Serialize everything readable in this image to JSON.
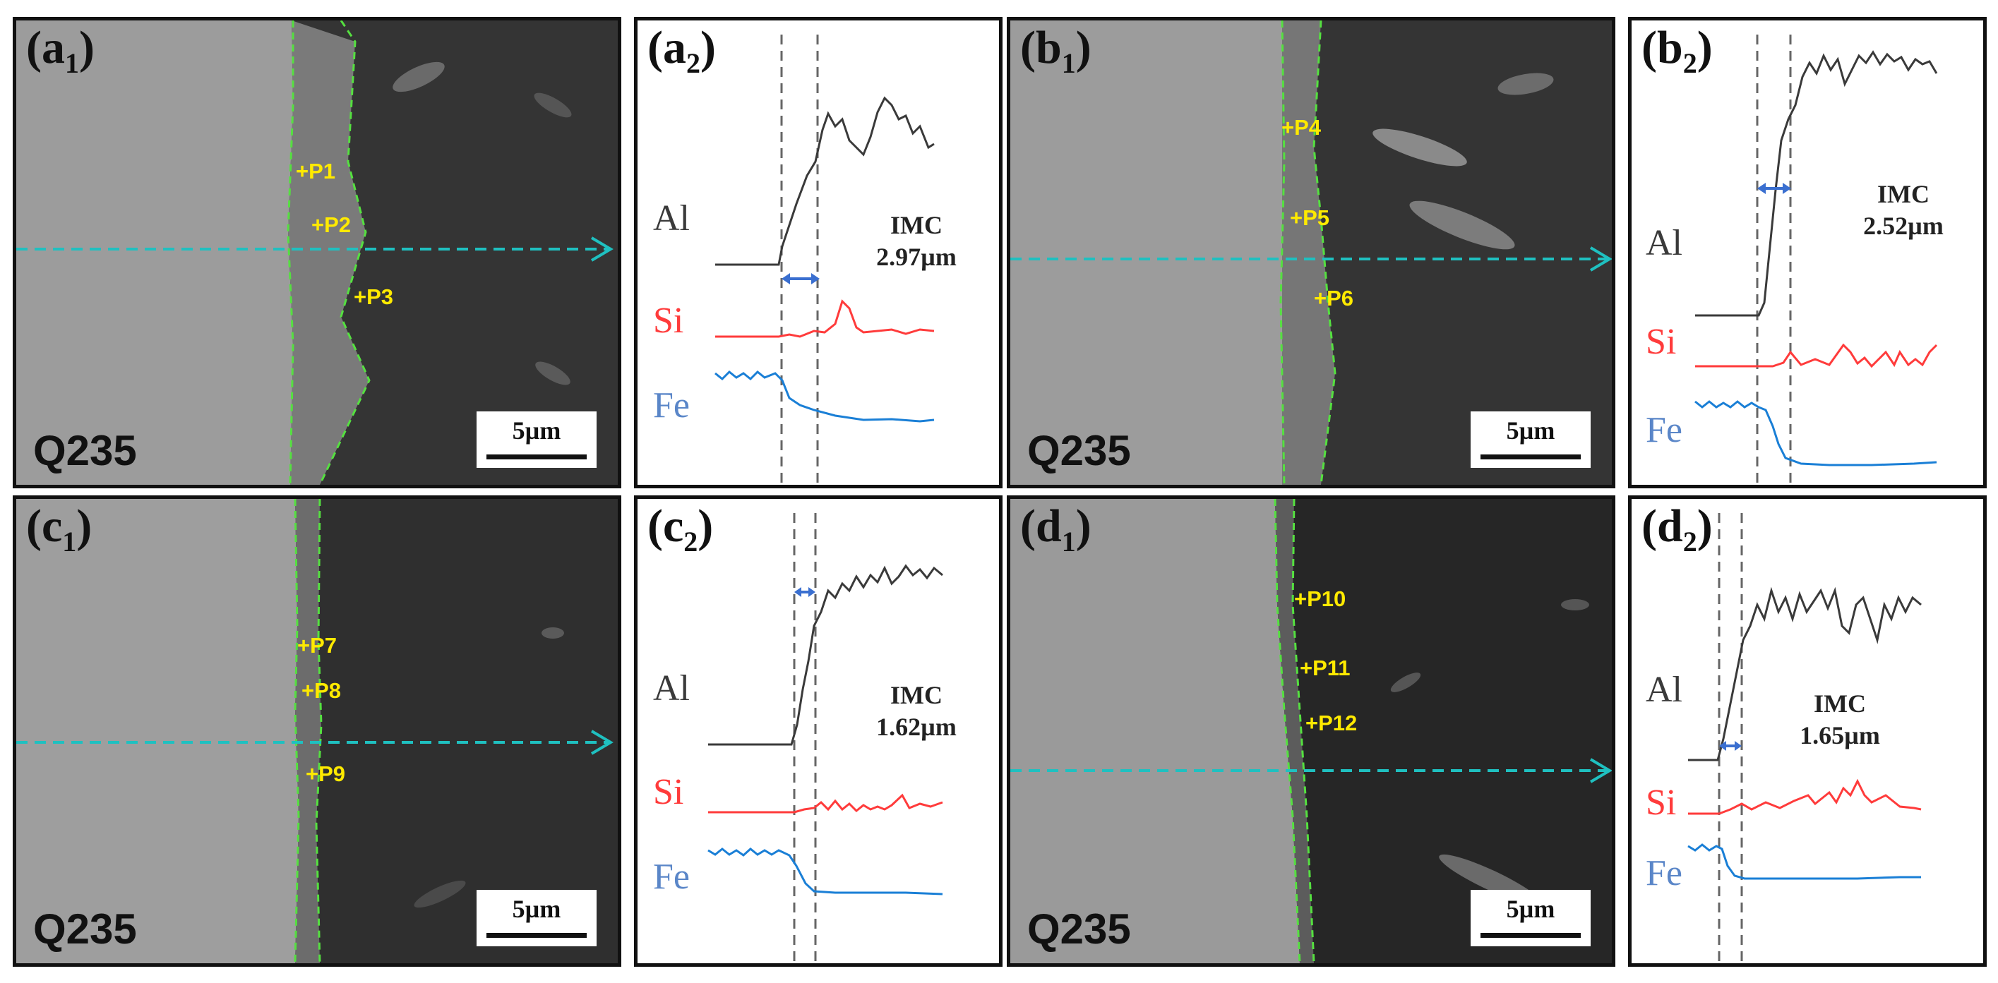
{
  "panels": {
    "a1": {
      "letter": "(a",
      "sub": "1",
      "close": ")",
      "material": "Q235",
      "scale": "5µm",
      "points": [
        "+P1",
        "+P2",
        "+P3"
      ]
    },
    "a2": {
      "letter": "(a",
      "sub": "2",
      "close": ")",
      "imc_label": "IMC",
      "imc_value": "2.97µm"
    },
    "b1": {
      "letter": "(b",
      "sub": "1",
      "close": ")",
      "material": "Q235",
      "scale": "5µm",
      "points": [
        "+P4",
        "+P5",
        "+P6"
      ]
    },
    "b2": {
      "letter": "(b",
      "sub": "2",
      "close": ")",
      "imc_label": "IMC",
      "imc_value": "2.52µm"
    },
    "c1": {
      "letter": "(c",
      "sub": "1",
      "close": ")",
      "material": "Q235",
      "scale": "5µm",
      "points": [
        "+P7",
        "+P8",
        "+P9"
      ]
    },
    "c2": {
      "letter": "(c",
      "sub": "2",
      "close": ")",
      "imc_label": "IMC",
      "imc_value": "1.62µm"
    },
    "d1": {
      "letter": "(d",
      "sub": "1",
      "close": ")",
      "material": "Q235",
      "scale": "5µm",
      "points": [
        "+P10",
        "+P11",
        "+P12"
      ]
    },
    "d2": {
      "letter": "(d",
      "sub": "2",
      "close": ")",
      "imc_label": "IMC",
      "imc_value": "1.65µm"
    }
  },
  "elements": [
    "Al",
    "Si",
    "Fe"
  ],
  "colors": {
    "Al": "#3a3a3a",
    "Si": "#ff3b3b",
    "Fe": "#1a7fd6",
    "interface": "#55e040",
    "scan_arrow": "#1fc0c0",
    "points": "#ffea00",
    "imc_arrow": "#3a6fd0"
  }
}
